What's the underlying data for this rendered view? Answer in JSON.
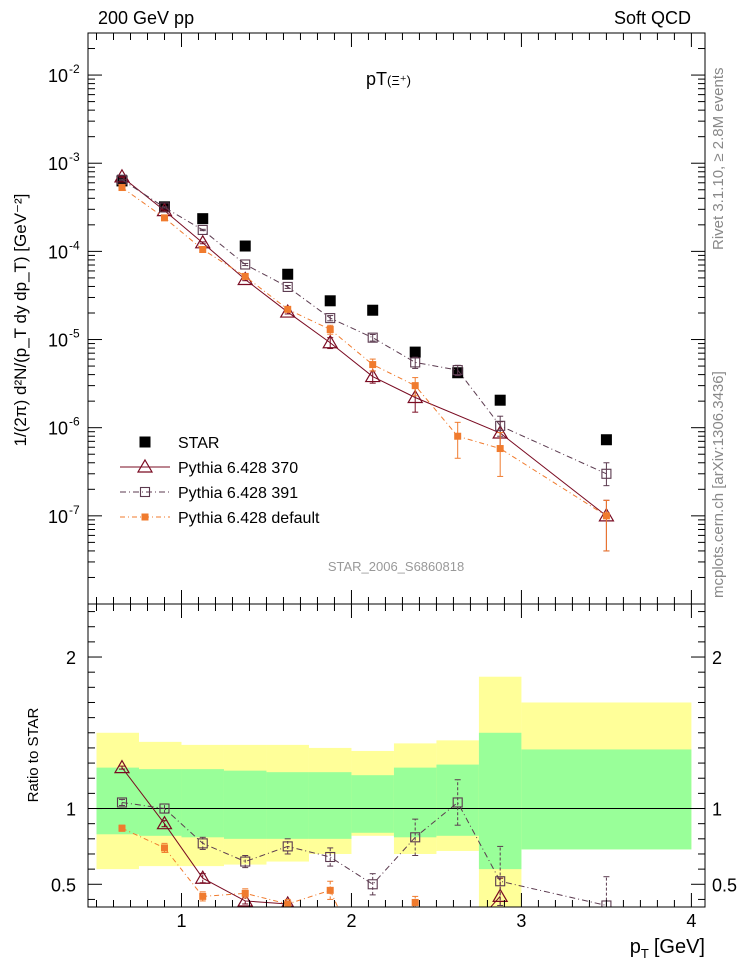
{
  "header": {
    "left": "200 GeV pp",
    "right": "Soft QCD"
  },
  "side_labels": {
    "rivet": "Rivet 3.1.10, ≥ 2.8M events",
    "mcplots": "mcplots.cern.ch [arXiv:1306.3436]"
  },
  "watermark": "STAR_2006_S6860818",
  "colors": {
    "star": "#000000",
    "p370": "#7a0b22",
    "p391": "#5b3a4f",
    "pdef": "#f07b2e",
    "band_yellow": "#ffff99",
    "band_green": "#99ff99"
  },
  "chart_data": [
    {
      "type": "scatter",
      "title": "pT(Ξ⁺)",
      "title_main": "pT",
      "title_particle": "(Ξ⁺)",
      "ylabel": "1/(2π) d²N/(p_T dy dp_T) [GeV⁻²]",
      "yscale": "log",
      "ylim": [
        1e-08,
        0.03
      ],
      "xlim": [
        0.45,
        4.08
      ],
      "y_ticks": [
        {
          "value": 1e-07,
          "base": "10",
          "exp": "-7"
        },
        {
          "value": 1e-06,
          "base": "10",
          "exp": "-6"
        },
        {
          "value": 1e-05,
          "base": "10",
          "exp": "-5"
        },
        {
          "value": 0.0001,
          "base": "10",
          "exp": "-4"
        },
        {
          "value": 0.001,
          "base": "10",
          "exp": "-3"
        },
        {
          "value": 0.01,
          "base": "10",
          "exp": "-2"
        }
      ],
      "legend_position": "lower-left",
      "series": [
        {
          "name": "STAR",
          "key": "star",
          "style": "data",
          "x": [
            0.65,
            0.9,
            1.125,
            1.375,
            1.625,
            1.875,
            2.125,
            2.375,
            2.625,
            2.875,
            3.5
          ],
          "y": [
            0.00063,
            0.00032,
            0.000235,
            0.000115,
            5.5e-05,
            2.75e-05,
            2.15e-05,
            7.2e-06,
            4.2e-06,
            2.05e-06,
            7.3e-07
          ]
        },
        {
          "name": "Pythia 6.428 370",
          "key": "p370",
          "style": "triangle",
          "x": [
            0.65,
            0.9,
            1.125,
            1.375,
            1.625,
            1.875,
            2.125,
            2.375,
            2.875,
            3.5
          ],
          "y": [
            0.0007,
            0.00029,
            0.000125,
            4.8e-05,
            2.05e-05,
            9.2e-06,
            3.8e-06,
            2.2e-06,
            8.7e-07,
            1e-07
          ],
          "err_lo": [
            1e-05,
            5e-06,
            3e-06,
            1.5e-06,
            1e-06,
            1.3e-06,
            6e-07,
            7e-07,
            2.5e-07,
            6e-08
          ],
          "err_hi": [
            1e-05,
            5e-06,
            3e-06,
            1.5e-06,
            1e-06,
            1.3e-06,
            6e-07,
            7e-07,
            3e-07,
            5e-08
          ]
        },
        {
          "name": "Pythia 6.428 391",
          "key": "p391",
          "style": "open-square",
          "x": [
            0.65,
            0.9,
            1.125,
            1.375,
            1.625,
            1.875,
            2.125,
            2.375,
            2.625,
            2.875,
            3.5
          ],
          "y": [
            0.00065,
            0.000315,
            0.000175,
            7.1e-05,
            3.95e-05,
            1.75e-05,
            1.05e-05,
            5.5e-06,
            4.5e-06,
            1.05e-06,
            3e-07
          ],
          "err_lo": [
            1e-05,
            5e-06,
            3e-06,
            2e-06,
            1.5e-06,
            1.2e-06,
            9e-07,
            8e-07,
            6e-07,
            2.5e-07,
            8e-08
          ],
          "err_hi": [
            1e-05,
            5e-06,
            3e-06,
            2e-06,
            1.5e-06,
            1.2e-06,
            9e-07,
            8e-07,
            6e-07,
            3e-07,
            1e-07
          ]
        },
        {
          "name": "Pythia 6.428 default",
          "key": "pdef",
          "style": "filled-square",
          "x": [
            0.65,
            0.9,
            1.125,
            1.375,
            1.625,
            1.875,
            2.125,
            2.375,
            2.625,
            2.875,
            3.5
          ],
          "y": [
            0.00053,
            0.00024,
            0.000105,
            5.2e-05,
            2.2e-05,
            1.3e-05,
            5.2e-06,
            3e-06,
            8e-07,
            5.8e-07,
            1e-07
          ],
          "err_lo": [
            1e-05,
            5e-06,
            3e-06,
            2e-06,
            1.5e-06,
            1.5e-06,
            8e-07,
            7e-07,
            3.5e-07,
            3e-07,
            6e-08
          ],
          "err_hi": [
            1e-05,
            5e-06,
            3e-06,
            2e-06,
            1.5e-06,
            1.5e-06,
            8e-07,
            7e-07,
            3.5e-07,
            3e-07,
            5e-08
          ]
        }
      ]
    },
    {
      "type": "scatter",
      "xlabel_main": "p",
      "xlabel_sub": "T",
      "xlabel_unit": "[GeV]",
      "ylabel": "Ratio to STAR",
      "ylim": [
        0.35,
        2.35
      ],
      "xlim": [
        0.45,
        4.08
      ],
      "x_tick_labels": [
        {
          "value": 1,
          "label": "1"
        },
        {
          "value": 2,
          "label": "2"
        },
        {
          "value": 3,
          "label": "3"
        },
        {
          "value": 4,
          "label": "4"
        }
      ],
      "y_tick_labels": [
        {
          "value": 0.5,
          "label": "0.5"
        },
        {
          "value": 1,
          "label": "1"
        },
        {
          "value": 2,
          "label": "2"
        }
      ],
      "bands": {
        "bin_edges": [
          0.5,
          0.75,
          1.0,
          1.25,
          1.5,
          1.75,
          2.0,
          2.25,
          2.5,
          2.75,
          3.0,
          4.0
        ],
        "yellow_lo": [
          0.6,
          0.62,
          0.62,
          0.63,
          0.65,
          0.7,
          0.82,
          0.7,
          0.72,
          0.35,
          0.73
        ],
        "yellow_hi": [
          1.5,
          1.44,
          1.42,
          1.42,
          1.42,
          1.4,
          1.38,
          1.43,
          1.45,
          1.87,
          1.7
        ],
        "green_lo": [
          0.83,
          0.82,
          0.81,
          0.8,
          0.8,
          0.8,
          0.84,
          0.81,
          0.82,
          0.6,
          0.73
        ],
        "green_hi": [
          1.27,
          1.26,
          1.26,
          1.25,
          1.24,
          1.24,
          1.22,
          1.27,
          1.29,
          1.5,
          1.39
        ]
      },
      "series": [
        {
          "name": "Pythia 6.428 370",
          "key": "p370",
          "style": "triangle",
          "x": [
            0.65,
            0.9,
            1.125,
            1.375,
            1.625,
            2.875
          ],
          "y": [
            1.27,
            0.9,
            0.54,
            0.39,
            0.37,
            0.42
          ],
          "err_lo": [
            0.01,
            0.02,
            0.03,
            0.02,
            0.02,
            0.12
          ],
          "err_hi": [
            0.01,
            0.02,
            0.03,
            0.02,
            0.02,
            0.12
          ]
        },
        {
          "name": "Pythia 6.428 391",
          "key": "p391",
          "style": "open-square",
          "x": [
            0.65,
            0.9,
            1.125,
            1.375,
            1.625,
            1.875,
            2.125,
            2.375,
            2.625,
            2.875,
            3.5
          ],
          "y": [
            1.04,
            1.0,
            0.77,
            0.65,
            0.75,
            0.68,
            0.5,
            0.81,
            1.04,
            0.52,
            0.36
          ],
          "err_lo": [
            0.02,
            0.03,
            0.04,
            0.04,
            0.05,
            0.06,
            0.07,
            0.12,
            0.15,
            0.16,
            0.1
          ],
          "err_hi": [
            0.02,
            0.03,
            0.04,
            0.04,
            0.05,
            0.06,
            0.07,
            0.12,
            0.15,
            0.23,
            0.19
          ]
        },
        {
          "name": "Pythia 6.428 default",
          "key": "pdef",
          "style": "filled-square",
          "x": [
            0.65,
            0.9,
            1.125,
            1.375,
            1.625,
            1.875,
            2.375
          ],
          "y": [
            0.87,
            0.74,
            0.42,
            0.44,
            0.37,
            0.46,
            0.38
          ],
          "err_lo": [
            0.02,
            0.03,
            0.03,
            0.03,
            0.03,
            0.06,
            0.04
          ],
          "err_hi": [
            0.02,
            0.03,
            0.03,
            0.03,
            0.03,
            0.06,
            0.04
          ]
        }
      ]
    }
  ]
}
